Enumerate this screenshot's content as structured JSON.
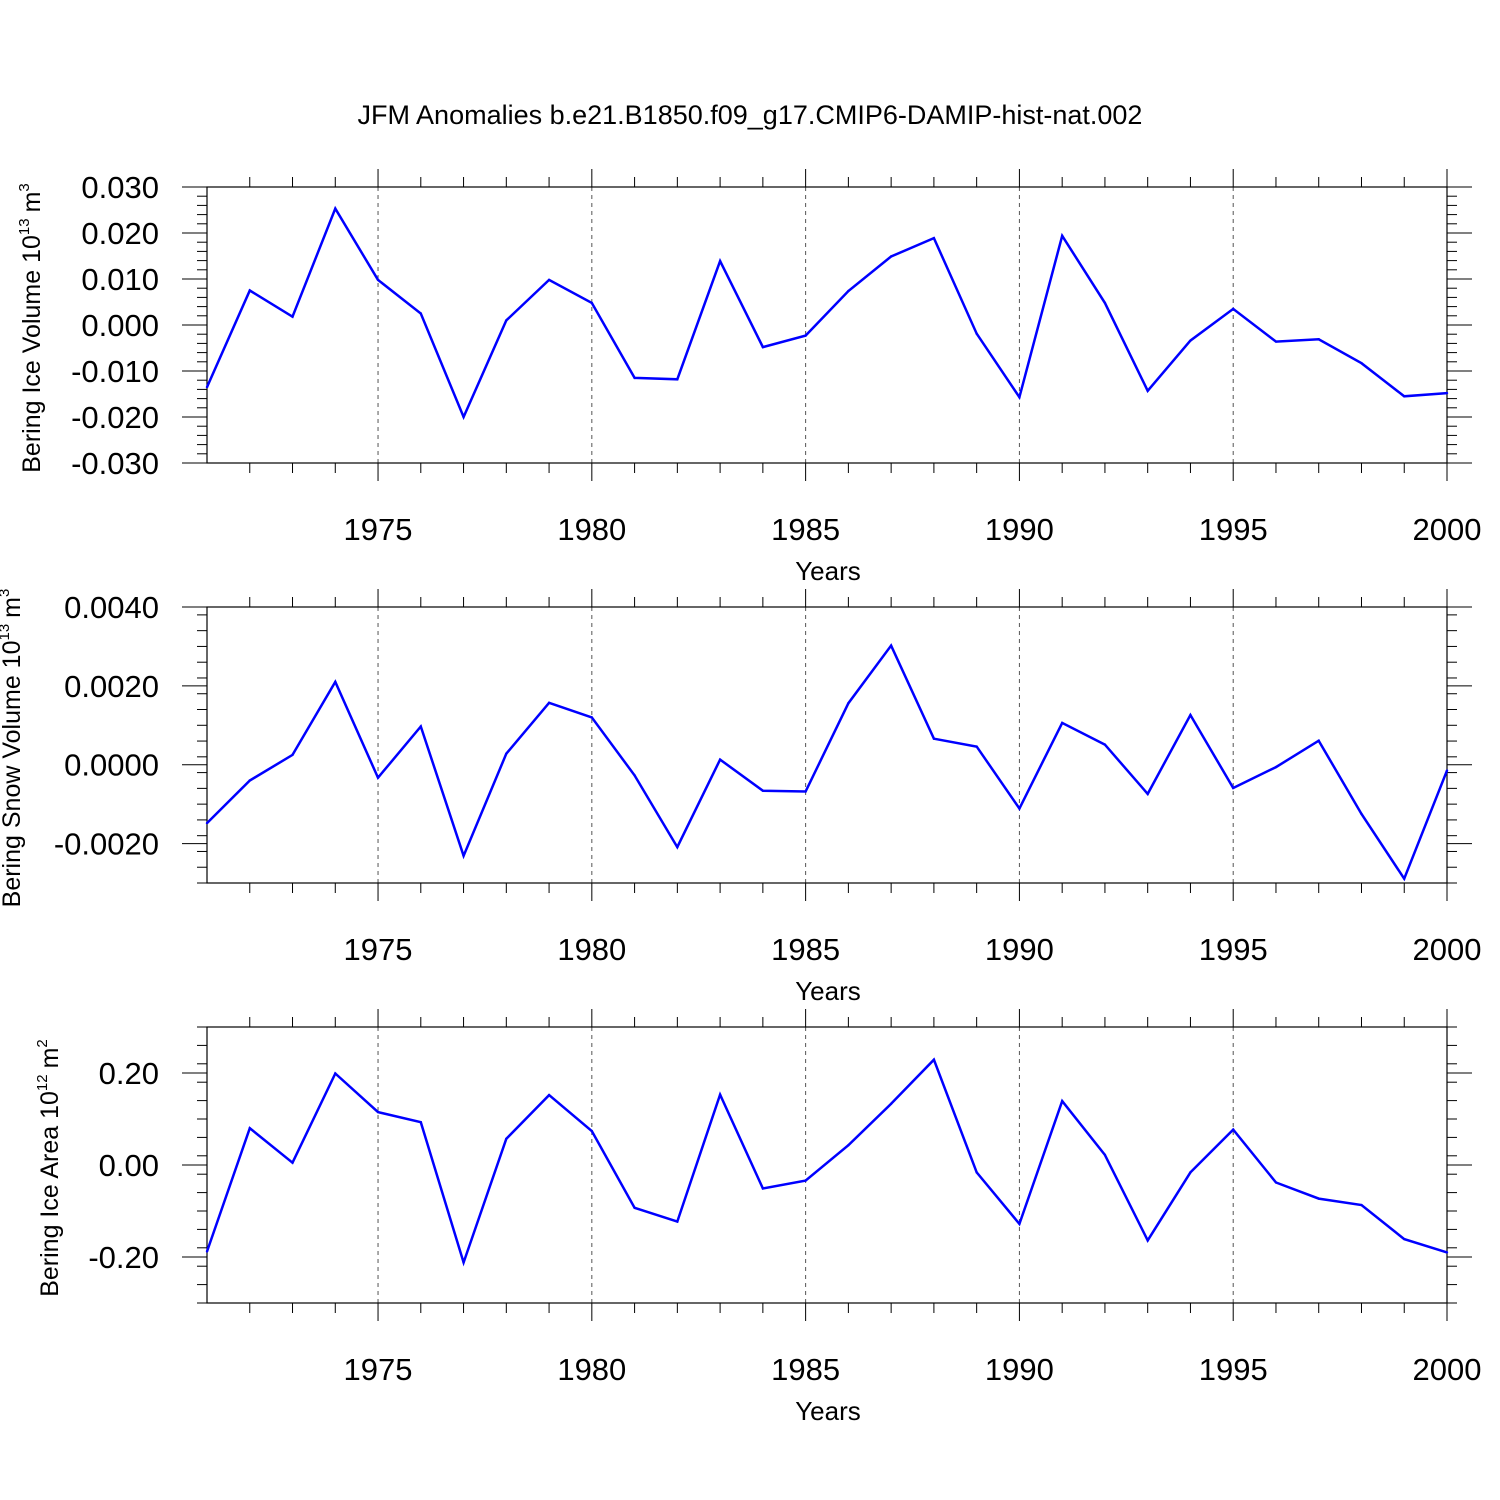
{
  "title": "JFM Anomalies b.e21.B1850.f09_g17.CMIP6-DAMIP-hist-nat.002",
  "chart_data": [
    {
      "type": "line",
      "xlabel": "Years",
      "ylabel": {
        "base": "Bering Ice Volume 10",
        "exp": "13",
        "unit": "m",
        "unit_exp": "3"
      },
      "xlim": [
        1971,
        2000
      ],
      "ylim": [
        -0.03,
        0.03
      ],
      "xticks": [
        1975,
        1980,
        1985,
        1990,
        1995,
        2000
      ],
      "yticks": [
        -0.03,
        -0.02,
        -0.01,
        0.0,
        0.01,
        0.02,
        0.03
      ],
      "ytick_labels": [
        "-0.030",
        "-0.020",
        "-0.010",
        "0.000",
        "0.010",
        "0.020",
        "0.030"
      ],
      "y_minor_step": 0.002,
      "series": [
        {
          "name": "Bering Ice Volume",
          "color": "#0000ff",
          "x": [
            1971,
            1972,
            1973,
            1974,
            1975,
            1976,
            1977,
            1978,
            1979,
            1980,
            1981,
            1982,
            1983,
            1984,
            1985,
            1986,
            1987,
            1988,
            1989,
            1990,
            1991,
            1992,
            1993,
            1994,
            1995,
            1996,
            1997,
            1998,
            1999,
            2000
          ],
          "values": [
            -0.0135,
            0.0075,
            0.0018,
            0.0253,
            0.0098,
            0.0025,
            -0.02,
            0.001,
            0.0098,
            0.0048,
            -0.0115,
            -0.0118,
            0.0139,
            -0.0048,
            -0.0023,
            0.0074,
            0.0149,
            0.0189,
            -0.0019,
            -0.0157,
            0.0194,
            0.0048,
            -0.0143,
            -0.0034,
            0.0035,
            -0.0036,
            -0.0031,
            -0.0083,
            -0.0155,
            -0.0148
          ]
        }
      ]
    },
    {
      "type": "line",
      "xlabel": "Years",
      "ylabel": {
        "base": "Bering Snow Volume 10",
        "exp": "13",
        "unit": "m",
        "unit_exp": "3"
      },
      "xlim": [
        1971,
        2000
      ],
      "ylim": [
        -0.003,
        0.004
      ],
      "xticks": [
        1975,
        1980,
        1985,
        1990,
        1995,
        2000
      ],
      "yticks": [
        -0.002,
        0.0,
        0.002,
        0.004
      ],
      "ytick_labels": [
        "-0.0020",
        "0.0000",
        "0.0020",
        "0.0040"
      ],
      "y_minor_step": 0.0004,
      "series": [
        {
          "name": "Bering Snow Volume",
          "color": "#0000ff",
          "x": [
            1971,
            1972,
            1973,
            1974,
            1975,
            1976,
            1977,
            1978,
            1979,
            1980,
            1981,
            1982,
            1983,
            1984,
            1985,
            1986,
            1987,
            1988,
            1989,
            1990,
            1991,
            1992,
            1993,
            1994,
            1995,
            1996,
            1997,
            1998,
            1999,
            2000
          ],
          "values": [
            -0.00148,
            -0.0004,
            0.00025,
            0.0021,
            -0.00033,
            0.00097,
            -0.00231,
            0.00028,
            0.00157,
            0.0012,
            -0.00027,
            -0.00209,
            0.00013,
            -0.00066,
            -0.00068,
            0.00156,
            0.00302,
            0.00066,
            0.00046,
            -0.00111,
            0.00106,
            0.00051,
            -0.00074,
            0.00126,
            -0.00059,
            -6e-05,
            0.00061,
            -0.00125,
            -0.00289,
            -0.00015
          ]
        }
      ]
    },
    {
      "type": "line",
      "xlabel": "Years",
      "ylabel": {
        "base": "Bering Ice Area 10",
        "exp": "12",
        "unit": "m",
        "unit_exp": "2"
      },
      "xlim": [
        1971,
        2000
      ],
      "ylim": [
        -0.3,
        0.3
      ],
      "xticks": [
        1975,
        1980,
        1985,
        1990,
        1995,
        2000
      ],
      "yticks": [
        -0.2,
        0.0,
        0.2
      ],
      "ytick_labels": [
        "-0.20",
        "0.00",
        "0.20"
      ],
      "y_minor_step": 0.04,
      "series": [
        {
          "name": "Bering Ice Area",
          "color": "#0000ff",
          "x": [
            1971,
            1972,
            1973,
            1974,
            1975,
            1976,
            1977,
            1978,
            1979,
            1980,
            1981,
            1982,
            1983,
            1984,
            1985,
            1986,
            1987,
            1988,
            1989,
            1990,
            1991,
            1992,
            1993,
            1994,
            1995,
            1996,
            1997,
            1998,
            1999,
            2000
          ],
          "values": [
            -0.188,
            0.08,
            0.005,
            0.199,
            0.115,
            0.093,
            -0.212,
            0.057,
            0.152,
            0.074,
            -0.093,
            -0.123,
            0.153,
            -0.051,
            -0.034,
            0.043,
            0.133,
            0.229,
            -0.016,
            -0.128,
            0.139,
            0.022,
            -0.164,
            -0.016,
            0.077,
            -0.038,
            -0.073,
            -0.087,
            -0.161,
            -0.19
          ]
        }
      ]
    }
  ]
}
